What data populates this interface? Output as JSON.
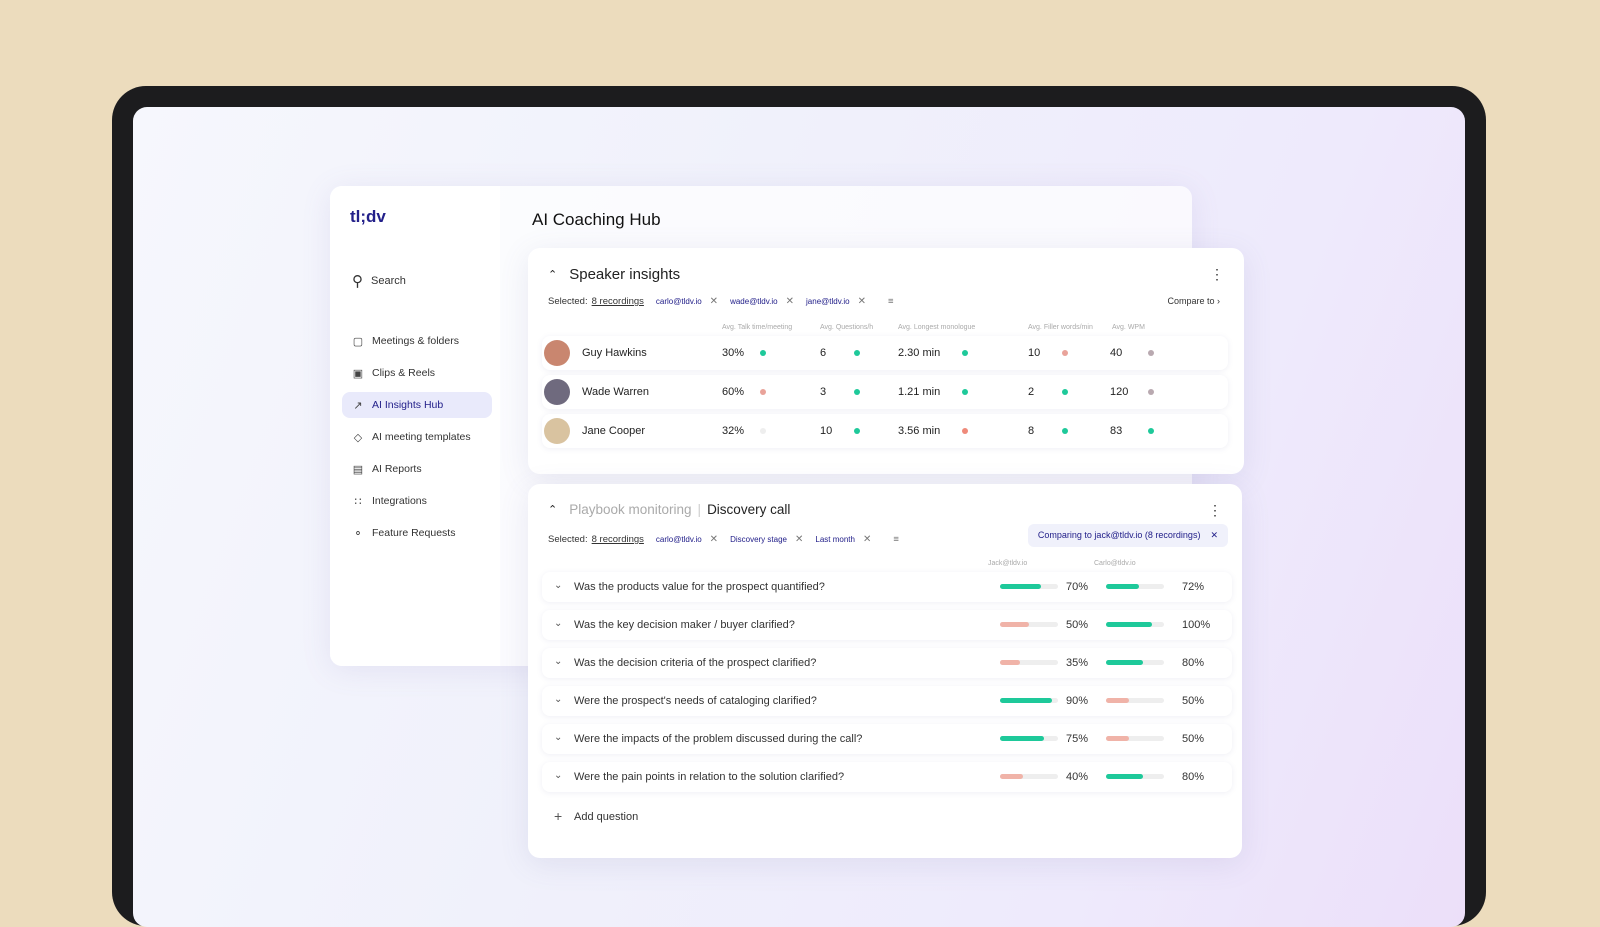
{
  "logo": "tl;dv",
  "search": {
    "label": "Search"
  },
  "nav": [
    {
      "label": "Meetings & folders",
      "icon": "video-icon"
    },
    {
      "label": "Clips & Reels",
      "icon": "clapper-icon"
    },
    {
      "label": "AI Insights Hub",
      "icon": "trend-icon",
      "active": true
    },
    {
      "label": "AI meeting templates",
      "icon": "tag-icon"
    },
    {
      "label": "AI Reports",
      "icon": "report-icon"
    },
    {
      "label": "Integrations",
      "icon": "grid-icon"
    },
    {
      "label": "Feature Requests",
      "icon": "bulb-icon"
    }
  ],
  "page_title": "AI Coaching Hub",
  "speaker": {
    "title": "Speaker insights",
    "selected_label": "Selected:",
    "recordings": "8 recordings",
    "chips": [
      "carlo@tldv.io",
      "wade@tldv.io",
      "jane@tldv.io"
    ],
    "compare": "Compare to",
    "columns": [
      "Avg. Talk time/meeting",
      "Avg. Questions/h",
      "Avg. Longest monologue",
      "Avg. Filler words/min",
      "Avg. WPM"
    ],
    "rows": [
      {
        "name": "Guy Hawkins",
        "values": [
          "30%",
          "6",
          "2.30 min",
          "10",
          "40"
        ],
        "status": [
          "#1ec99a",
          "#1ec99a",
          "#1ec99a",
          "#e9a39a",
          "#b9a9b0"
        ]
      },
      {
        "name": "Wade Warren",
        "values": [
          "60%",
          "3",
          "1.21 min",
          "2",
          "120"
        ],
        "status": [
          "#e9a39a",
          "#1ec99a",
          "#1ec99a",
          "#1ec99a",
          "#b9a9b0"
        ]
      },
      {
        "name": "Jane Cooper",
        "values": [
          "32%",
          "10",
          "3.56 min",
          "8",
          "83"
        ],
        "status": [
          "#eeeeee",
          "#1ec99a",
          "#ef8a7a",
          "#1ec99a",
          "#1ec99a"
        ]
      }
    ]
  },
  "playbook": {
    "title_muted": "Playbook monitoring",
    "title": "Discovery call",
    "selected_label": "Selected:",
    "recordings": "8 recordings",
    "chips": [
      "carlo@tldv.io",
      "Discovery stage",
      "Last month"
    ],
    "comparing": "Comparing to jack@tldv.io (8 recordings)",
    "columns": [
      "Jack@tldv.io",
      "Carlo@tldv.io"
    ],
    "questions": [
      {
        "text": "Was the products value for the prospect quantified?",
        "a": 70,
        "b": 72
      },
      {
        "text": "Was the key decision maker / buyer clarified?",
        "a": 50,
        "b": 100
      },
      {
        "text": "Was the decision criteria of the prospect clarified?",
        "a": 35,
        "b": 80
      },
      {
        "text": "Were the prospect's needs of cataloging clarified?",
        "a": 90,
        "b": 50
      },
      {
        "text": "Were the impacts of the problem discussed during the call?",
        "a": 75,
        "b": 50
      },
      {
        "text": "Were the pain points in relation to the solution clarified?",
        "a": 40,
        "b": 80
      }
    ],
    "add": "Add question"
  },
  "colors": {
    "good": "#1ec99a",
    "bad": "#f0b3a8",
    "brand": "#23208a"
  }
}
